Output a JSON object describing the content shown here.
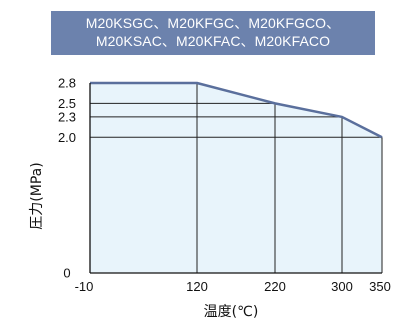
{
  "header": {
    "line1": "M20KSGC、M20KFGC、M20KFGCO、",
    "line2": "M20KSAC、M20KFAC、M20KFACO"
  },
  "colors": {
    "header_bg": "#6c82ad",
    "area_fill": "#e8f4fb",
    "line": "#5a6f9c",
    "grid": "#222222"
  },
  "chart_data": {
    "type": "area",
    "title": "M20KSGC、M20KFGC、M20KFGCO、M20KSAC、M20KFAC、M20KFACO",
    "xlabel": "温度(℃)",
    "ylabel": "圧力(MPa)",
    "x": [
      -10,
      120,
      220,
      300,
      350
    ],
    "y": [
      2.8,
      2.8,
      2.5,
      2.3,
      2.0
    ],
    "xticks": [
      -10,
      120,
      220,
      300,
      350
    ],
    "yticks": [
      0,
      2.0,
      2.3,
      2.5,
      2.8
    ],
    "xtick_labels": [
      "-10",
      "120",
      "220",
      "300",
      "350"
    ],
    "ytick_labels": [
      "0",
      "2.0",
      "2.3",
      "2.5",
      "2.8"
    ],
    "xlim": [
      -10,
      350
    ],
    "ylim": [
      0,
      2.8
    ],
    "grid": true
  }
}
